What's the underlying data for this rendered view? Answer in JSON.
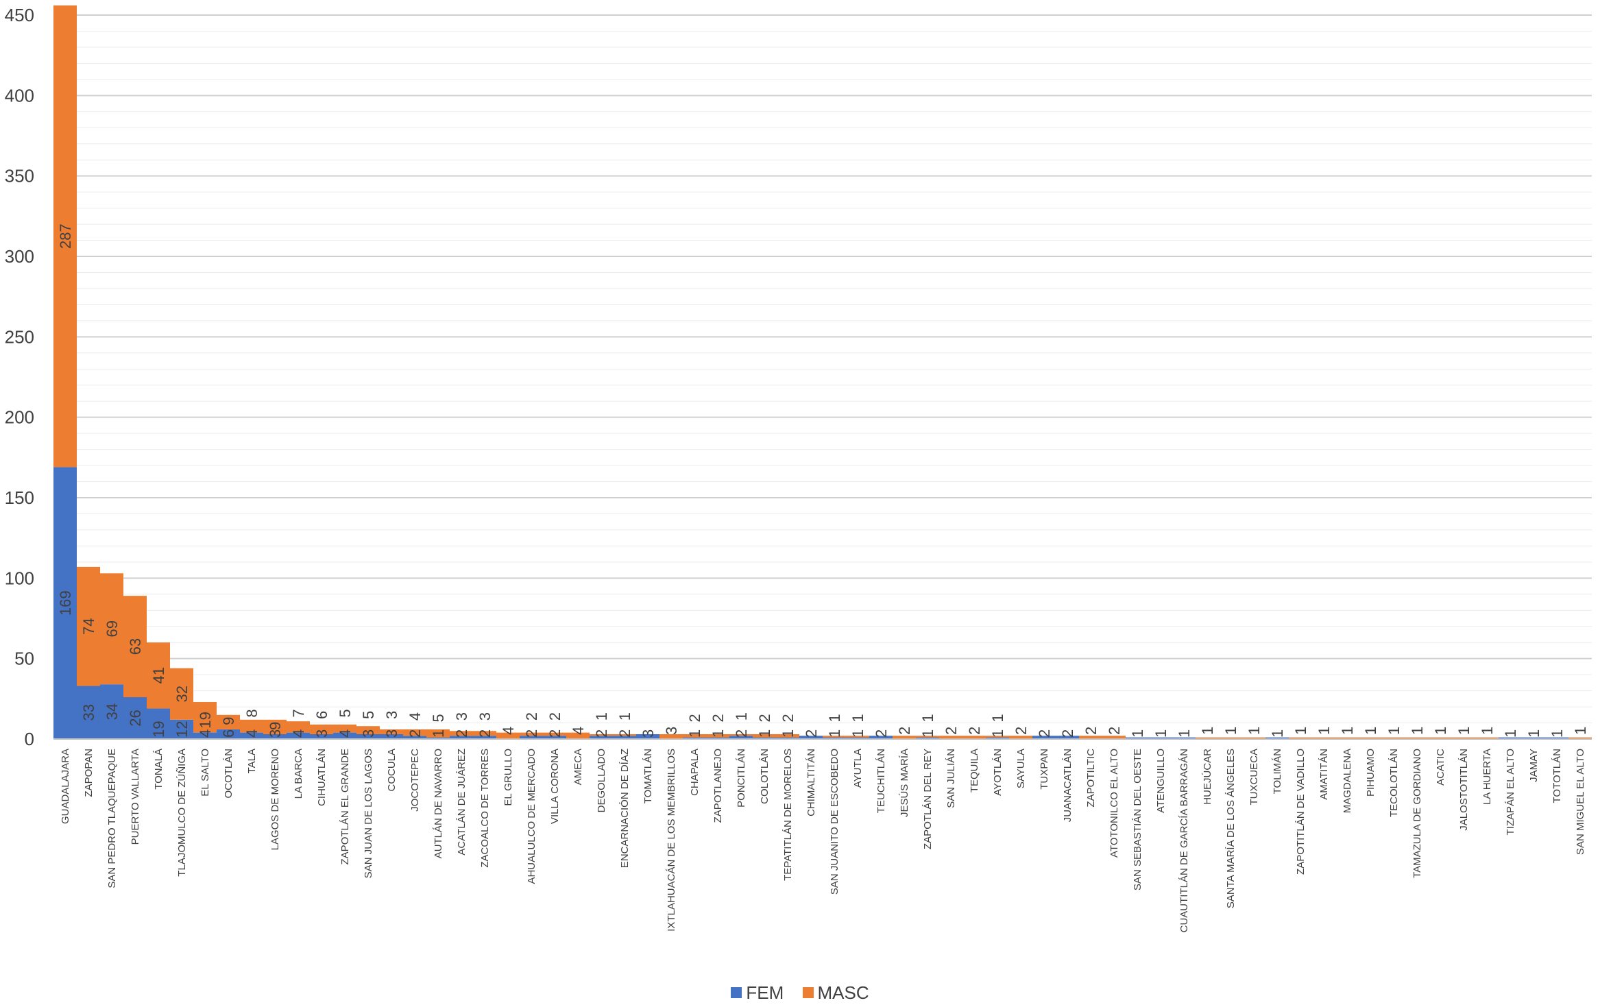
{
  "chart_data": {
    "type": "bar",
    "stacked": true,
    "ylim": [
      0,
      450
    ],
    "yticks": [
      0,
      50,
      100,
      150,
      200,
      250,
      300,
      350,
      400,
      450
    ],
    "grid": true,
    "legend_position": "bottom",
    "categories": [
      "GUADALAJARA",
      "ZAPOPAN",
      "SAN PEDRO TLAQUEPAQUE",
      "PUERTO VALLARTA",
      "TONALÁ",
      "TLAJOMULCO DE ZÚÑIGA",
      "EL SALTO",
      "OCOTLÁN",
      "TALA",
      "LAGOS DE MORENO",
      "LA BARCA",
      "CIHUATLÁN",
      "ZAPOTLÁN EL GRANDE",
      "SAN JUAN DE LOS LAGOS",
      "COCULA",
      "JOCOTEPEC",
      "AUTLÁN DE NAVARRO",
      "ACATLÁN DE JUÁREZ",
      "ZACOALCO DE TORRES",
      "EL GRULLO",
      "AHUALULCO DE MERCADO",
      "VILLA CORONA",
      "AMECA",
      "DEGOLLADO",
      "ENCARNACIÓN DE DÍAZ",
      "TOMATLÁN",
      "IXTLAHUACÁN DE LOS MEMBRILLOS",
      "CHAPALA",
      "ZAPOTLANEJO",
      "PONCITLÁN",
      "COLOTLÁN",
      "TEPATITLÁN DE MORELOS",
      "CHIMALTITÁN",
      "SAN JUANITO DE ESCOBEDO",
      "AYUTLA",
      "TEUCHITLÁN",
      "JESÚS MARÍA",
      "ZAPOTLÁN DEL REY",
      "SAN JULIÁN",
      "TEQUILA",
      "AYOTLÁN",
      "SAYULA",
      "TUXPAN",
      "JUANACATLÁN",
      "ZAPOTILTIC",
      "ATOTONILCO EL ALTO",
      "SAN SEBASTIÁN DEL OESTE",
      "ATENGUILLO",
      "CUAUTITLÁN DE GARCÍA BARRAGÁN",
      "HUEJÚCAR",
      "SANTA MARÍA DE LOS ÁNGELES",
      "TUXCUECA",
      "TOLIMÁN",
      "ZAPOTITLÁN DE VADILLO",
      "AMATITÁN",
      "MAGDALENA",
      "PIHUAMO",
      "TECOLOTLÁN",
      "TAMAZULA DE GORDIANO",
      "ACATIC",
      "JALOSTOTITLÁN",
      "LA HUERTA",
      "TIZAPÁN EL ALTO",
      "JAMAY",
      "TOTOTLÁN",
      "SAN MIGUEL EL ALTO"
    ],
    "series": [
      {
        "name": "FEM",
        "color": "#4472C4",
        "values": [
          169,
          33,
          34,
          26,
          19,
          12,
          4,
          6,
          4,
          3,
          4,
          3,
          4,
          3,
          3,
          2,
          1,
          2,
          2,
          0,
          2,
          2,
          0,
          2,
          2,
          3,
          0,
          1,
          1,
          2,
          1,
          1,
          2,
          1,
          1,
          2,
          0,
          1,
          0,
          0,
          1,
          0,
          2,
          2,
          0,
          0,
          1,
          1,
          1,
          0,
          0,
          0,
          1,
          0,
          0,
          0,
          0,
          0,
          0,
          0,
          0,
          0,
          1,
          1,
          1,
          0
        ]
      },
      {
        "name": "MASC",
        "color": "#ED7D31",
        "values": [
          287,
          74,
          69,
          63,
          41,
          32,
          19,
          9,
          8,
          9,
          7,
          6,
          5,
          5,
          3,
          4,
          5,
          3,
          3,
          4,
          2,
          2,
          4,
          1,
          1,
          0,
          3,
          2,
          2,
          1,
          2,
          2,
          0,
          1,
          1,
          0,
          2,
          1,
          2,
          2,
          1,
          2,
          0,
          0,
          2,
          2,
          0,
          0,
          0,
          1,
          1,
          1,
          0,
          1,
          1,
          1,
          1,
          1,
          1,
          1,
          1,
          1,
          0,
          0,
          0,
          1
        ]
      }
    ]
  }
}
